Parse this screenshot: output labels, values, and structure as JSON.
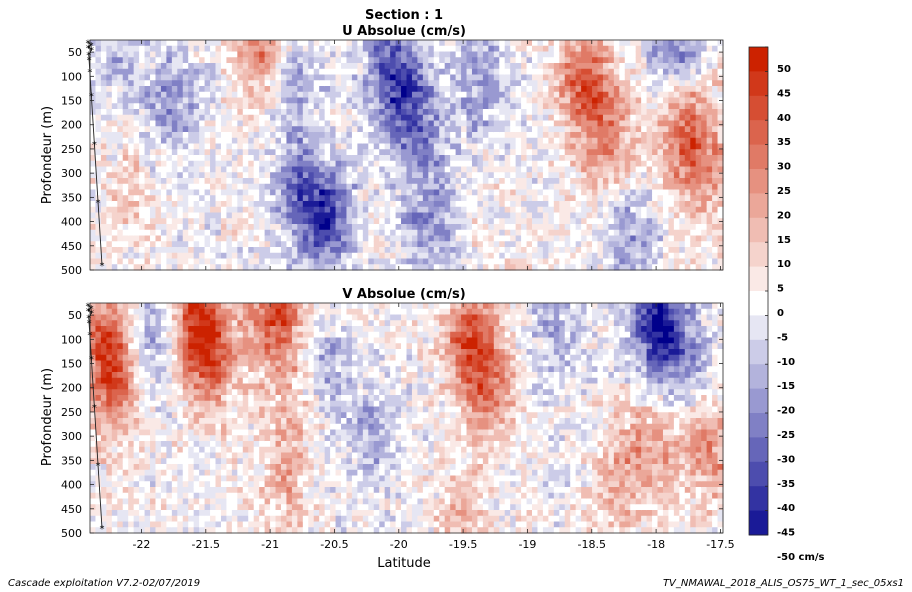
{
  "header": {
    "section_title": "Section : 1"
  },
  "footer": {
    "left": "Cascade exploitation V7.2-02/07/2019",
    "right": "TV_NMAWAL_2018_ALIS_OS75_WT_1_sec_05xs1"
  },
  "colors": {
    "negative_max": "#00008b",
    "neutral": "#ffffff",
    "positive_max": "#cc2200"
  },
  "chart_data": [
    {
      "type": "heatmap",
      "title": "U Absolue (cm/s)",
      "xlabel": "",
      "ylabel": "Profondeur (m)",
      "xlim": [
        -22.4,
        -17.48
      ],
      "ylim": [
        500,
        25
      ],
      "x_ticks": [
        -22,
        -21.5,
        -21,
        -20.5,
        -20,
        -19.5,
        -19,
        -18.5,
        -18,
        -17.5
      ],
      "x_tick_labels": [],
      "y_ticks": [
        50,
        100,
        150,
        200,
        250,
        300,
        350,
        400,
        450,
        500
      ],
      "y_tick_labels": [
        "50",
        "100",
        "150",
        "200",
        "250",
        "300",
        "350",
        "400",
        "450",
        "500"
      ],
      "value_range": [
        -50,
        50
      ],
      "blobs": [
        {
          "lat": -21.05,
          "depth": 30,
          "value": 35
        },
        {
          "lat": -21.75,
          "depth": 150,
          "value": -20
        },
        {
          "lat": -20.85,
          "depth": 100,
          "value": -20
        },
        {
          "lat": -20.75,
          "depth": 330,
          "value": -25
        },
        {
          "lat": -20.55,
          "depth": 400,
          "value": -30
        },
        {
          "lat": -20.05,
          "depth": 90,
          "value": -35
        },
        {
          "lat": -19.85,
          "depth": 200,
          "value": -25
        },
        {
          "lat": -19.75,
          "depth": 400,
          "value": -22
        },
        {
          "lat": -19.35,
          "depth": 120,
          "value": -20
        },
        {
          "lat": -18.55,
          "depth": 100,
          "value": 30
        },
        {
          "lat": -18.45,
          "depth": 200,
          "value": 20
        },
        {
          "lat": -18.25,
          "depth": 250,
          "value": 12
        },
        {
          "lat": -17.75,
          "depth": 200,
          "value": 30
        },
        {
          "lat": -17.65,
          "depth": 300,
          "value": 22
        },
        {
          "lat": -18.2,
          "depth": 420,
          "value": -20
        },
        {
          "lat": -17.85,
          "depth": 40,
          "value": -25
        },
        {
          "lat": -22.2,
          "depth": 80,
          "value": -10
        },
        {
          "lat": -22.1,
          "depth": 350,
          "value": 10
        }
      ]
    },
    {
      "type": "heatmap",
      "title": "V Absolue (cm/s)",
      "xlabel": "Latitude",
      "ylabel": "Profondeur (m)",
      "xlim": [
        -22.4,
        -17.48
      ],
      "ylim": [
        500,
        25
      ],
      "x_ticks": [
        -22,
        -21.5,
        -21,
        -20.5,
        -20,
        -19.5,
        -19,
        -18.5,
        -18,
        -17.5
      ],
      "x_tick_labels": [
        "-22",
        "-21.5",
        "-21",
        "-20.5",
        "-20",
        "-19.5",
        "-19",
        "-18.5",
        "-18",
        "-17.5"
      ],
      "y_ticks": [
        50,
        100,
        150,
        200,
        250,
        300,
        350,
        400,
        450,
        500
      ],
      "y_tick_labels": [
        "50",
        "100",
        "150",
        "200",
        "250",
        "300",
        "350",
        "400",
        "450",
        "500"
      ],
      "value_range": [
        -50,
        50
      ],
      "blobs": [
        {
          "lat": -22.25,
          "depth": 100,
          "value": 40
        },
        {
          "lat": -22.2,
          "depth": 220,
          "value": 25
        },
        {
          "lat": -21.55,
          "depth": 60,
          "value": 45
        },
        {
          "lat": -21.45,
          "depth": 150,
          "value": 25
        },
        {
          "lat": -20.95,
          "depth": 50,
          "value": 40
        },
        {
          "lat": -20.85,
          "depth": 250,
          "value": 15
        },
        {
          "lat": -21.95,
          "depth": 100,
          "value": -25
        },
        {
          "lat": -20.55,
          "depth": 150,
          "value": -15
        },
        {
          "lat": -20.2,
          "depth": 300,
          "value": -15
        },
        {
          "lat": -19.45,
          "depth": 100,
          "value": 35
        },
        {
          "lat": -19.3,
          "depth": 200,
          "value": 25
        },
        {
          "lat": -19.5,
          "depth": 480,
          "value": 15
        },
        {
          "lat": -18.75,
          "depth": 80,
          "value": -15
        },
        {
          "lat": -18.0,
          "depth": 60,
          "value": -40
        },
        {
          "lat": -17.8,
          "depth": 150,
          "value": -20
        },
        {
          "lat": -17.6,
          "depth": 330,
          "value": 25
        },
        {
          "lat": -18.3,
          "depth": 400,
          "value": 15
        },
        {
          "lat": -18.05,
          "depth": 330,
          "value": 20
        },
        {
          "lat": -20.9,
          "depth": 420,
          "value": 15
        }
      ]
    }
  ],
  "colorbar": {
    "levels": [
      -50,
      -45,
      -40,
      -35,
      -30,
      -25,
      -20,
      -15,
      -10,
      -5,
      0,
      5,
      10,
      15,
      20,
      25,
      30,
      35,
      40,
      45,
      50
    ],
    "tick_labels": [
      "50",
      "45",
      "40",
      "35",
      "30",
      "25",
      "20",
      "15",
      "10",
      "5",
      "0",
      "-5",
      "-10",
      "-15",
      "-20",
      "-25",
      "-30",
      "-35",
      "-40",
      "-45",
      "-50 cm/s"
    ]
  },
  "station_depths": [
    30,
    35,
    40,
    45,
    55,
    65,
    90,
    140,
    240,
    360,
    490
  ]
}
